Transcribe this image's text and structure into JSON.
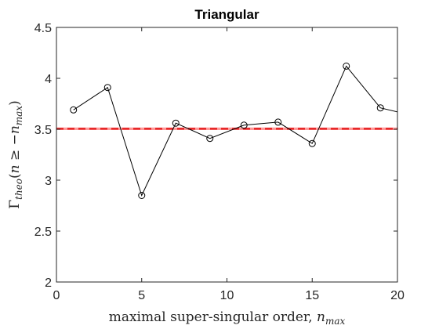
{
  "chart_data": {
    "type": "line",
    "title": "Triangular",
    "xlabel": "maximal super-singular order, n_max",
    "ylabel": "Γ_theo(n ≥ −n_max)",
    "xlim": [
      0,
      20
    ],
    "ylim": [
      2,
      4.5
    ],
    "xticks": [
      0,
      5,
      10,
      15,
      20
    ],
    "yticks": [
      2,
      2.5,
      3,
      3.5,
      4,
      4.5
    ],
    "xtick_labels": [
      "0",
      "5",
      "10",
      "15",
      "20"
    ],
    "ytick_labels": [
      "2",
      "2.5",
      "3",
      "3.5",
      "4",
      "4.5"
    ],
    "grid": false,
    "series": [
      {
        "marker": "circle",
        "color": "#000000",
        "x": [
          1,
          3,
          5,
          7,
          9,
          11,
          13,
          15,
          17,
          19,
          21
        ],
        "y": [
          3.69,
          3.91,
          2.85,
          3.56,
          3.41,
          3.54,
          3.57,
          3.36,
          4.12,
          3.71,
          3.63
        ]
      }
    ],
    "reference_lines": [
      {
        "y": 3.505,
        "style": "solid",
        "color": "#ff9999"
      },
      {
        "y": 3.505,
        "style": "dashed",
        "color": "#e41a1c"
      }
    ]
  },
  "labels": {
    "xlabel_text": "maximal super-singular order, ",
    "xlabel_math": "n",
    "xlabel_sub": "max",
    "ylabel_gamma": "Γ",
    "ylabel_sub": "theo",
    "ylabel_open": "(",
    "ylabel_n": "n",
    "ylabel_ge": " ≥ −",
    "ylabel_n2": "n",
    "ylabel_sub2": "max",
    "ylabel_close": ")"
  }
}
